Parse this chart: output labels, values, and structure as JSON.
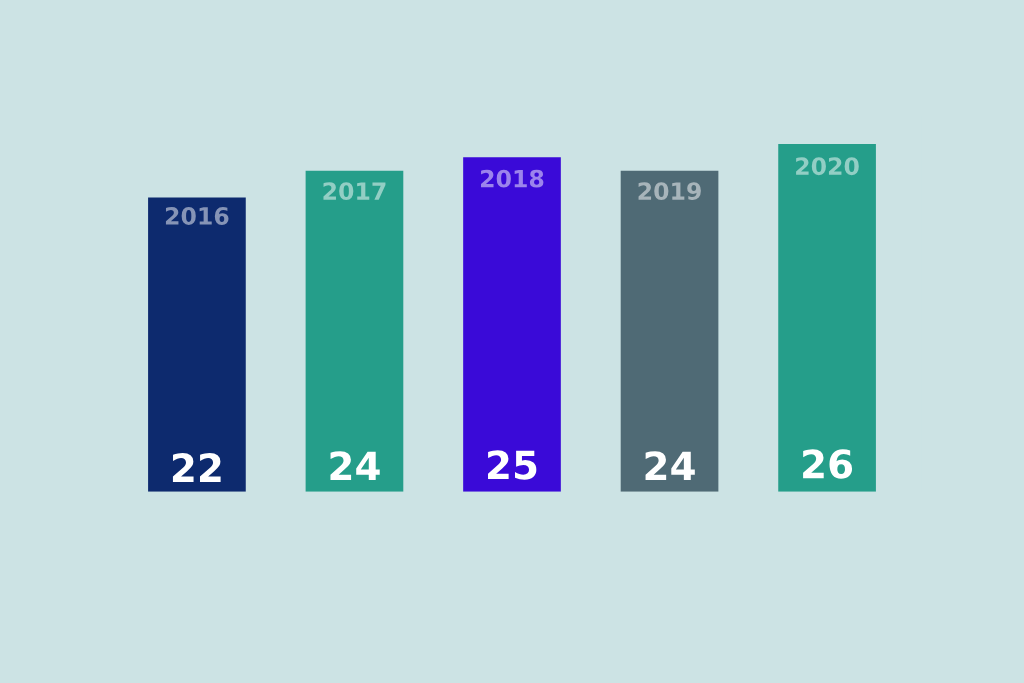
{
  "chart_data": {
    "type": "bar",
    "categories": [
      "2016",
      "2017",
      "2018",
      "2019",
      "2020"
    ],
    "values": [
      22,
      24,
      25,
      24,
      26
    ],
    "colors": [
      "#0d2a6e",
      "#259e8a",
      "#3a0ad8",
      "#4f6a75",
      "#259e8a"
    ],
    "data_labels": true
  }
}
